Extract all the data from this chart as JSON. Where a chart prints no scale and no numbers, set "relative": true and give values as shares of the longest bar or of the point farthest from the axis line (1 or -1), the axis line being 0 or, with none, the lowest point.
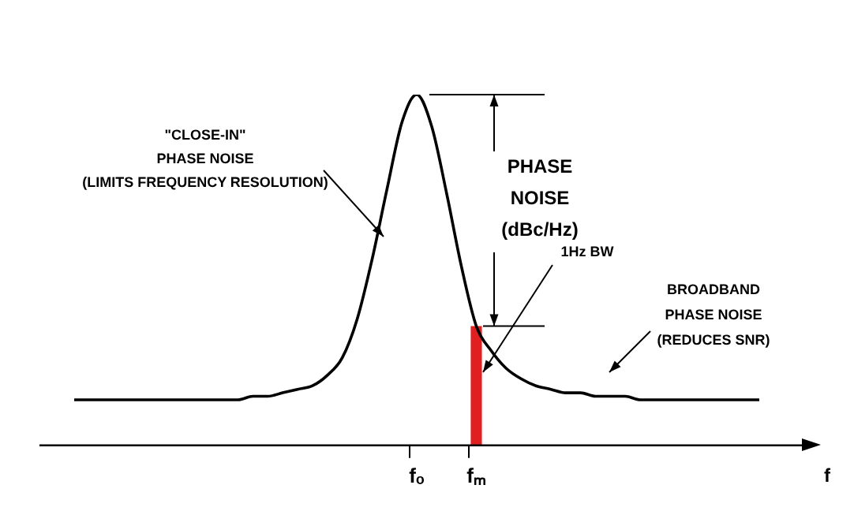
{
  "chart_data": {
    "type": "line",
    "relative": true,
    "xlabel": "f",
    "categories": [
      null,
      null,
      null,
      null,
      null,
      null,
      null,
      null,
      null,
      null,
      null,
      null,
      null,
      null,
      null,
      null,
      null,
      null,
      null,
      null,
      null,
      null,
      null,
      "fₒ",
      null,
      null,
      null,
      "fₘ",
      null,
      null,
      null,
      null,
      null,
      null,
      null,
      null,
      null,
      null,
      null,
      null,
      null,
      null,
      null,
      null,
      null,
      null,
      null
    ],
    "series": [
      {
        "color": "#000000",
        "values": [
          0.13,
          0.13,
          0.13,
          0.13,
          0.13,
          0.13,
          0.13,
          0.13,
          0.13,
          0.13,
          0.13,
          0.13,
          0.14,
          0.14,
          0.15,
          0.16,
          0.17,
          0.2,
          0.25,
          0.36,
          0.53,
          0.73,
          0.92,
          1,
          0.91,
          0.72,
          0.51,
          0.34,
          0.27,
          0.22,
          0.19,
          0.17,
          0.16,
          0.15,
          0.15,
          0.14,
          0.14,
          0.14,
          0.13,
          0.13,
          0.13,
          0.13,
          0.13,
          0.13,
          0.13,
          0.13,
          0.13
        ]
      },
      {
        "type": "bar",
        "color": "#e02020",
        "values": [
          null,
          null,
          null,
          null,
          null,
          null,
          null,
          null,
          null,
          null,
          null,
          null,
          null,
          null,
          null,
          null,
          null,
          null,
          null,
          null,
          null,
          null,
          null,
          null,
          null,
          null,
          null,
          0.34,
          null,
          null,
          null,
          null,
          null,
          null,
          null,
          null,
          null,
          null,
          null,
          null,
          null,
          null,
          null,
          null,
          null,
          null,
          null
        ]
      }
    ],
    "annotations": [
      "\"CLOSE-IN\"\nPHASE NOISE\n(LIMITS FREQUENCY RESOLUTION)",
      "PHASE\nNOISE\n(dBc/Hz)",
      "1Hz BW",
      "BROADBAND\nPHASE NOISE\n(REDUCES SNR)"
    ],
    "ref_lines": [
      {
        "axis": "y",
        "value": 1,
        "color": "#000000"
      },
      {
        "axis": "y",
        "value": 0.34,
        "color": "#000000"
      }
    ],
    "legend": false
  }
}
